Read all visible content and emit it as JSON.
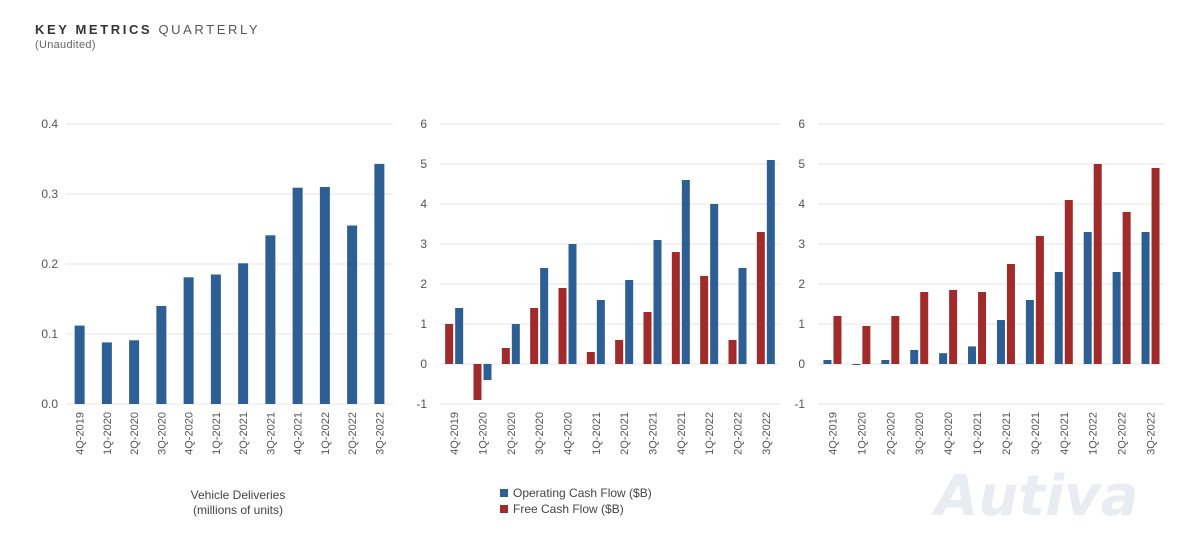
{
  "header": {
    "title_bold": "KEY METRICS",
    "title_light": "QUARTERLY",
    "subtitle": "(Unaudited)"
  },
  "watermark": "Autiva",
  "colors": {
    "blue": "#2d5f94",
    "red": "#a12a2a",
    "grid": "#e6e6e6"
  },
  "chart_data": [
    {
      "type": "bar",
      "categories": [
        "4Q-2019",
        "1Q-2020",
        "2Q-2020",
        "3Q-2020",
        "4Q-2020",
        "1Q-2021",
        "2Q-2021",
        "3Q-2021",
        "4Q-2021",
        "1Q-2022",
        "2Q-2022",
        "3Q-2022"
      ],
      "series": [
        {
          "name": "",
          "color": "#2d5f94",
          "values": [
            0.112,
            0.088,
            0.091,
            0.14,
            0.181,
            0.185,
            0.201,
            0.241,
            0.309,
            0.31,
            0.255,
            0.343
          ]
        }
      ],
      "ylim": [
        0,
        0.4
      ],
      "yticks": [
        "0.0",
        "0.1",
        "0.2",
        "0.3",
        "0.4"
      ],
      "ytick_values": [
        0,
        0.1,
        0.2,
        0.3,
        0.4
      ],
      "label_lines": [
        "Vehicle Deliveries",
        "(millions of units)"
      ],
      "grid": true
    },
    {
      "type": "bar",
      "categories": [
        "4Q-2019",
        "1Q-2020",
        "2Q-2020",
        "3Q-2020",
        "4Q-2020",
        "1Q-2021",
        "2Q-2021",
        "3Q-2021",
        "4Q-2021",
        "1Q-2022",
        "2Q-2022",
        "3Q-2022"
      ],
      "series": [
        {
          "name": "Free Cash Flow ($B)",
          "color": "#a12a2a",
          "values": [
            1.0,
            -0.9,
            0.4,
            1.4,
            1.9,
            0.3,
            0.6,
            1.3,
            2.8,
            2.2,
            0.6,
            3.3
          ]
        },
        {
          "name": "Operating Cash Flow ($B)",
          "color": "#2d5f94",
          "values": [
            1.4,
            -0.4,
            1.0,
            2.4,
            3.0,
            1.6,
            2.1,
            3.1,
            4.6,
            4.0,
            2.4,
            5.1
          ]
        }
      ],
      "ylim": [
        -1,
        6
      ],
      "yticks": [
        "-1",
        "0",
        "1",
        "2",
        "3",
        "4",
        "5",
        "6"
      ],
      "ytick_values": [
        -1,
        0,
        1,
        2,
        3,
        4,
        5,
        6
      ],
      "legend": [
        {
          "label": "Operating Cash Flow ($B)",
          "color": "#2d5f94"
        },
        {
          "label": "Free Cash Flow ($B)",
          "color": "#a12a2a"
        }
      ],
      "legend_position": "bottom",
      "grid": true
    },
    {
      "type": "bar",
      "categories": [
        "4Q-2019",
        "1Q-2020",
        "2Q-2020",
        "3Q-2020",
        "4Q-2020",
        "1Q-2021",
        "2Q-2021",
        "3Q-2021",
        "4Q-2021",
        "1Q-2022",
        "2Q-2022",
        "3Q-2022"
      ],
      "series": [
        {
          "name": "",
          "color": "#2d5f94",
          "values": [
            0.1,
            0.0,
            0.1,
            0.35,
            0.27,
            0.44,
            1.1,
            1.6,
            2.3,
            3.3,
            2.3,
            3.3
          ]
        },
        {
          "name": "",
          "color": "#a12a2a",
          "values": [
            1.2,
            0.95,
            1.2,
            1.8,
            1.85,
            1.8,
            2.5,
            3.2,
            4.1,
            5.0,
            3.8,
            4.9
          ]
        }
      ],
      "ylim": [
        -1,
        6
      ],
      "yticks": [
        "-1",
        "0",
        "1",
        "2",
        "3",
        "4",
        "5",
        "6"
      ],
      "ytick_values": [
        -1,
        0,
        1,
        2,
        3,
        4,
        5,
        6
      ],
      "grid": true
    }
  ]
}
